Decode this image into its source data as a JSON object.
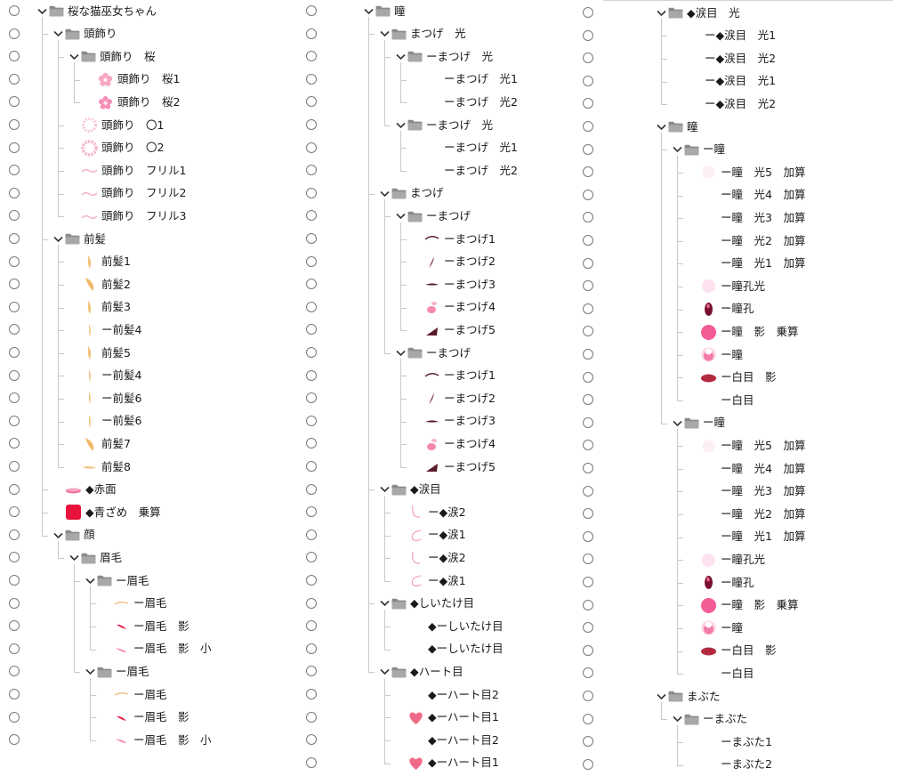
{
  "panels": [
    {
      "rows": [
        {
          "depth": 0,
          "kind": "folder",
          "open": true,
          "label": "桜な猫巫女ちゃん"
        },
        {
          "depth": 1,
          "kind": "folder",
          "open": true,
          "label": "頭飾り"
        },
        {
          "depth": 2,
          "kind": "folder",
          "open": true,
          "label": "頭飾り　桜"
        },
        {
          "depth": 3,
          "kind": "layer",
          "thumb": "sakura-flower",
          "label": "頭飾り　桜1"
        },
        {
          "depth": 3,
          "kind": "layer",
          "thumb": "sakura-flower-2",
          "label": "頭飾り　桜2"
        },
        {
          "depth": 2,
          "kind": "layer",
          "thumb": "pink-ring",
          "label": "頭飾り　〇1"
        },
        {
          "depth": 2,
          "kind": "layer",
          "thumb": "pink-ring-2",
          "label": "頭飾り　〇2"
        },
        {
          "depth": 2,
          "kind": "layer",
          "thumb": "frill",
          "label": "頭飾り　フリル1"
        },
        {
          "depth": 2,
          "kind": "layer",
          "thumb": "frill",
          "label": "頭飾り　フリル2"
        },
        {
          "depth": 2,
          "kind": "layer",
          "thumb": "frill",
          "label": "頭飾り　フリル3"
        },
        {
          "depth": 1,
          "kind": "folder",
          "open": true,
          "label": "前髪"
        },
        {
          "depth": 2,
          "kind": "layer",
          "thumb": "hair-strand",
          "label": "前髪1"
        },
        {
          "depth": 2,
          "kind": "layer",
          "thumb": "hair-strand-wide",
          "label": "前髪2"
        },
        {
          "depth": 2,
          "kind": "layer",
          "thumb": "hair-strand",
          "label": "前髪3"
        },
        {
          "depth": 2,
          "kind": "layer",
          "thumb": "hair-strand-thin",
          "label": "ー前髪4"
        },
        {
          "depth": 2,
          "kind": "layer",
          "thumb": "hair-strand",
          "label": "前髪5"
        },
        {
          "depth": 2,
          "kind": "layer",
          "thumb": "hair-strand-thin",
          "label": "ー前髪4"
        },
        {
          "depth": 2,
          "kind": "layer",
          "thumb": "hair-strand-thin",
          "label": "ー前髪6"
        },
        {
          "depth": 2,
          "kind": "layer",
          "thumb": "hair-strand-thin",
          "label": "ー前髪6"
        },
        {
          "depth": 2,
          "kind": "layer",
          "thumb": "hair-strand-wide",
          "label": "前髪7"
        },
        {
          "depth": 2,
          "kind": "layer",
          "thumb": "hair-strand-flat",
          "label": "前髪8"
        },
        {
          "depth": 1,
          "kind": "layer",
          "thumb": "blush",
          "label": "◆赤面"
        },
        {
          "depth": 1,
          "kind": "layer",
          "thumb": "red-block",
          "label": "◆青ざめ　乗算"
        },
        {
          "depth": 1,
          "kind": "folder",
          "open": true,
          "label": "顔"
        },
        {
          "depth": 2,
          "kind": "folder",
          "open": true,
          "label": "眉毛"
        },
        {
          "depth": 3,
          "kind": "folder",
          "open": true,
          "label": "ー眉毛"
        },
        {
          "depth": 4,
          "kind": "layer",
          "thumb": "brow-line",
          "label": "ー眉毛"
        },
        {
          "depth": 4,
          "kind": "layer",
          "thumb": "brow-red",
          "label": "ー眉毛　影"
        },
        {
          "depth": 4,
          "kind": "layer",
          "thumb": "brow-pink",
          "label": "ー眉毛　影　小"
        },
        {
          "depth": 3,
          "kind": "folder",
          "open": true,
          "label": "ー眉毛"
        },
        {
          "depth": 4,
          "kind": "layer",
          "thumb": "brow-line",
          "label": "ー眉毛"
        },
        {
          "depth": 4,
          "kind": "layer",
          "thumb": "brow-red",
          "label": "ー眉毛　影"
        },
        {
          "depth": 4,
          "kind": "layer",
          "thumb": "brow-pink",
          "label": "ー眉毛　影　小"
        }
      ]
    },
    {
      "rows": [
        {
          "depth": 0,
          "kind": "folder",
          "open": true,
          "label": "瞳"
        },
        {
          "depth": 1,
          "kind": "folder",
          "open": true,
          "label": "まつげ　光"
        },
        {
          "depth": 2,
          "kind": "folder",
          "open": true,
          "label": "ーまつげ　光"
        },
        {
          "depth": 3,
          "kind": "layer",
          "thumb": "none",
          "label": "ーまつげ　光1"
        },
        {
          "depth": 3,
          "kind": "layer",
          "thumb": "none",
          "label": "ーまつげ　光2"
        },
        {
          "depth": 2,
          "kind": "folder",
          "open": true,
          "label": "ーまつげ　光"
        },
        {
          "depth": 3,
          "kind": "layer",
          "thumb": "none",
          "label": "ーまつげ　光1"
        },
        {
          "depth": 3,
          "kind": "layer",
          "thumb": "none",
          "label": "ーまつげ　光2"
        },
        {
          "depth": 1,
          "kind": "folder",
          "open": true,
          "label": "まつげ"
        },
        {
          "depth": 2,
          "kind": "folder",
          "open": true,
          "label": "ーまつげ"
        },
        {
          "depth": 3,
          "kind": "layer",
          "thumb": "lash-curve",
          "label": "ーまつげ1"
        },
        {
          "depth": 3,
          "kind": "layer",
          "thumb": "lash-stroke",
          "label": "ーまつげ2"
        },
        {
          "depth": 3,
          "kind": "layer",
          "thumb": "lash-wing",
          "label": "ーまつげ3"
        },
        {
          "depth": 3,
          "kind": "layer",
          "thumb": "lash-pink",
          "label": "ーまつげ4"
        },
        {
          "depth": 3,
          "kind": "layer",
          "thumb": "lash-corner",
          "label": "ーまつげ5"
        },
        {
          "depth": 2,
          "kind": "folder",
          "open": true,
          "label": "ーまつげ"
        },
        {
          "depth": 3,
          "kind": "layer",
          "thumb": "lash-curve",
          "label": "ーまつげ1"
        },
        {
          "depth": 3,
          "kind": "layer",
          "thumb": "lash-stroke",
          "label": "ーまつげ2"
        },
        {
          "depth": 3,
          "kind": "layer",
          "thumb": "lash-wing",
          "label": "ーまつげ3"
        },
        {
          "depth": 3,
          "kind": "layer",
          "thumb": "lash-pink",
          "label": "ーまつげ4"
        },
        {
          "depth": 3,
          "kind": "layer",
          "thumb": "lash-corner",
          "label": "ーまつげ5"
        },
        {
          "depth": 1,
          "kind": "folder",
          "open": true,
          "label": "◆涙目"
        },
        {
          "depth": 2,
          "kind": "layer",
          "thumb": "tear-hook",
          "label": "ー◆涙2"
        },
        {
          "depth": 2,
          "kind": "layer",
          "thumb": "tear-c",
          "label": "ー◆涙1"
        },
        {
          "depth": 2,
          "kind": "layer",
          "thumb": "tear-hook",
          "label": "ー◆涙2"
        },
        {
          "depth": 2,
          "kind": "layer",
          "thumb": "tear-c",
          "label": "ー◆涙1"
        },
        {
          "depth": 1,
          "kind": "folder",
          "open": true,
          "label": "◆しいたけ目"
        },
        {
          "depth": 2,
          "kind": "layer",
          "thumb": "none",
          "label": "◆ーしいたけ目"
        },
        {
          "depth": 2,
          "kind": "layer",
          "thumb": "none",
          "label": "◆ーしいたけ目"
        },
        {
          "depth": 1,
          "kind": "folder",
          "open": true,
          "label": "◆ハート目"
        },
        {
          "depth": 2,
          "kind": "layer",
          "thumb": "none",
          "label": "◆ーハート目2"
        },
        {
          "depth": 2,
          "kind": "layer",
          "thumb": "heart",
          "label": "◆ーハート目1"
        },
        {
          "depth": 2,
          "kind": "layer",
          "thumb": "none",
          "label": "◆ーハート目2"
        },
        {
          "depth": 2,
          "kind": "layer",
          "thumb": "heart",
          "label": "◆ーハート目1"
        }
      ]
    },
    {
      "rows": [
        {
          "depth": 0,
          "kind": "folder",
          "open": true,
          "label": "◆涙目　光"
        },
        {
          "depth": 1,
          "kind": "layer",
          "thumb": "none",
          "label": "ー◆涙目　光1"
        },
        {
          "depth": 1,
          "kind": "layer",
          "thumb": "none",
          "label": "ー◆涙目　光2"
        },
        {
          "depth": 1,
          "kind": "layer",
          "thumb": "none",
          "label": "ー◆涙目　光1"
        },
        {
          "depth": 1,
          "kind": "layer",
          "thumb": "none",
          "label": "ー◆涙目　光2"
        },
        {
          "depth": 0,
          "kind": "folder",
          "open": true,
          "label": "瞳"
        },
        {
          "depth": 1,
          "kind": "folder",
          "open": true,
          "label": "ー瞳"
        },
        {
          "depth": 2,
          "kind": "layer",
          "thumb": "faint-circle",
          "label": "ー瞳　光5　加算"
        },
        {
          "depth": 2,
          "kind": "layer",
          "thumb": "none",
          "label": "ー瞳　光4　加算"
        },
        {
          "depth": 2,
          "kind": "layer",
          "thumb": "none",
          "label": "ー瞳　光3　加算"
        },
        {
          "depth": 2,
          "kind": "layer",
          "thumb": "none",
          "label": "ー瞳　光2　加算"
        },
        {
          "depth": 2,
          "kind": "layer",
          "thumb": "none",
          "label": "ー瞳　光1　加算"
        },
        {
          "depth": 2,
          "kind": "layer",
          "thumb": "pupil-light",
          "label": "ー瞳孔光"
        },
        {
          "depth": 2,
          "kind": "layer",
          "thumb": "pupil",
          "label": "ー瞳孔"
        },
        {
          "depth": 2,
          "kind": "layer",
          "thumb": "iris-shadow",
          "label": "ー瞳　影　乗算"
        },
        {
          "depth": 2,
          "kind": "layer",
          "thumb": "iris",
          "label": "ー瞳"
        },
        {
          "depth": 2,
          "kind": "layer",
          "thumb": "white-shadow",
          "label": "ー白目　影"
        },
        {
          "depth": 2,
          "kind": "layer",
          "thumb": "none",
          "label": "ー白目"
        },
        {
          "depth": 1,
          "kind": "folder",
          "open": true,
          "label": "ー瞳"
        },
        {
          "depth": 2,
          "kind": "layer",
          "thumb": "faint-circle",
          "label": "ー瞳　光5　加算"
        },
        {
          "depth": 2,
          "kind": "layer",
          "thumb": "none",
          "label": "ー瞳　光4　加算"
        },
        {
          "depth": 2,
          "kind": "layer",
          "thumb": "none",
          "label": "ー瞳　光3　加算"
        },
        {
          "depth": 2,
          "kind": "layer",
          "thumb": "none",
          "label": "ー瞳　光2　加算"
        },
        {
          "depth": 2,
          "kind": "layer",
          "thumb": "none",
          "label": "ー瞳　光1　加算"
        },
        {
          "depth": 2,
          "kind": "layer",
          "thumb": "pupil-light",
          "label": "ー瞳孔光"
        },
        {
          "depth": 2,
          "kind": "layer",
          "thumb": "pupil",
          "label": "ー瞳孔"
        },
        {
          "depth": 2,
          "kind": "layer",
          "thumb": "iris-shadow",
          "label": "ー瞳　影　乗算"
        },
        {
          "depth": 2,
          "kind": "layer",
          "thumb": "iris",
          "label": "ー瞳"
        },
        {
          "depth": 2,
          "kind": "layer",
          "thumb": "white-shadow",
          "label": "ー白目　影"
        },
        {
          "depth": 2,
          "kind": "layer",
          "thumb": "none",
          "label": "ー白目"
        },
        {
          "depth": 0,
          "kind": "folder",
          "open": true,
          "label": "まぶた"
        },
        {
          "depth": 1,
          "kind": "folder",
          "open": true,
          "label": "ーまぶた"
        },
        {
          "depth": 2,
          "kind": "layer",
          "thumb": "none",
          "label": "ーまぶた1"
        },
        {
          "depth": 2,
          "kind": "layer",
          "thumb": "none",
          "label": "ーまぶた2"
        }
      ]
    }
  ],
  "icons": {
    "visibility": "visibility-circle-icon",
    "expand": "chevron-down-icon",
    "folder": "folder-icon"
  },
  "colors": {
    "folder": "#8a8a8a",
    "tree_line": "#c8c8c8",
    "eye_ring": "#7a7a7a",
    "pink": "#f06aa0",
    "red": "#e8123c"
  }
}
